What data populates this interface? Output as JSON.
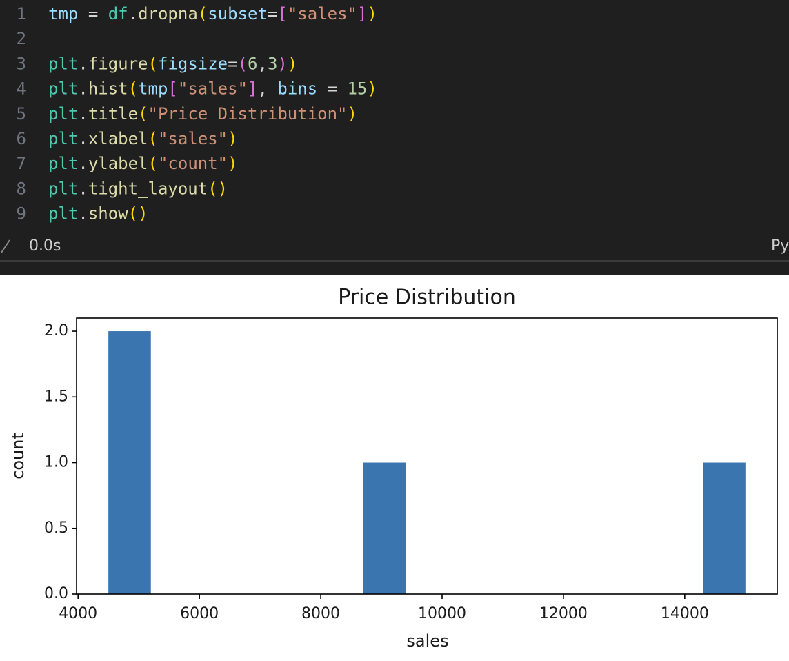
{
  "code_cell": {
    "lines": [
      {
        "number": 1,
        "text": "tmp = df.dropna(subset=[\"sales\"])"
      },
      {
        "number": 2
      },
      {
        "number": 3,
        "text": "plt.figure(figsize=(6,3))"
      },
      {
        "number": 4,
        "text": "plt.hist(tmp[\"sales\"], bins = 15)"
      },
      {
        "number": 5,
        "text": "plt.title(\"Price Distribution\")"
      },
      {
        "number": 6,
        "text": "plt.xlabel(\"sales\")"
      },
      {
        "number": 7,
        "text": "plt.ylabel(\"count\")"
      },
      {
        "number": 8,
        "text": "plt.tight_layout()"
      },
      {
        "number": 9,
        "text": "plt.show()"
      }
    ],
    "status": {
      "duration": "0.0s",
      "language": "Py"
    }
  },
  "chart_data": {
    "type": "histogram",
    "title": "Price Distribution",
    "xlabel": "sales",
    "ylabel": "count",
    "bins": [
      4500,
      5200,
      5900,
      6600,
      7300,
      8000,
      8700,
      9400,
      10100,
      10800,
      11500,
      12200,
      12900,
      13600,
      14300,
      15000
    ],
    "values": [
      2,
      0,
      0,
      0,
      0,
      0,
      1,
      0,
      0,
      0,
      0,
      0,
      0,
      0,
      1
    ],
    "color": "#3b75af",
    "xlim": [
      3975,
      15525
    ],
    "ylim": [
      0,
      2.1
    ],
    "xticks": [
      4000,
      6000,
      8000,
      10000,
      12000,
      14000
    ],
    "yticks": [
      {
        "value": 0,
        "label": "0.0"
      },
      {
        "value": 0.5,
        "label": "0.5"
      },
      {
        "value": 1,
        "label": "1.0"
      },
      {
        "value": 1.5,
        "label": "1.5"
      },
      {
        "value": 2,
        "label": "2.0"
      }
    ]
  }
}
